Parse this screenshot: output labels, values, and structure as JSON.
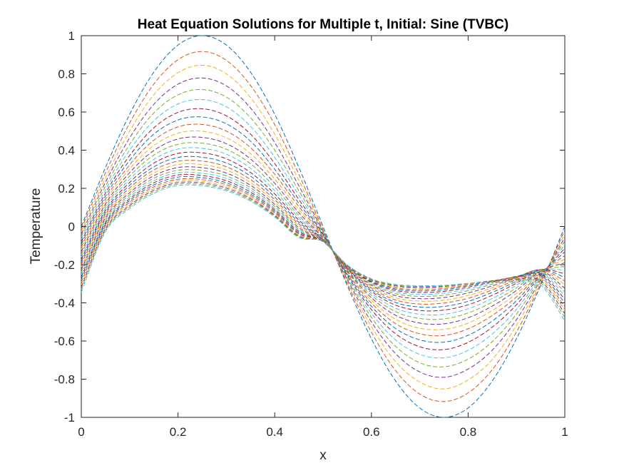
{
  "chart_data": {
    "type": "line",
    "title": "Heat Equation Solutions for Multiple t, Initial: Sine (TVBC)",
    "xlabel": "x",
    "ylabel": "Temperature",
    "xlim": [
      0,
      1
    ],
    "ylim": [
      -1,
      1
    ],
    "xticks": [
      0,
      0.2,
      0.4,
      0.6,
      0.8,
      1
    ],
    "xtick_labels": [
      "0",
      "0.2",
      "0.4",
      "0.6",
      "0.8",
      "1"
    ],
    "yticks": [
      -1,
      -0.8,
      -0.6,
      -0.4,
      -0.2,
      0,
      0.2,
      0.4,
      0.6,
      0.8,
      1
    ],
    "ytick_labels": [
      "-1",
      "-0.8",
      "-0.6",
      "-0.4",
      "-0.2",
      "0",
      "0.2",
      "0.4",
      "0.6",
      "0.8",
      "1"
    ],
    "grid": false,
    "line_style": "dashed",
    "color_order": [
      "#0072BD",
      "#D95319",
      "#EDB120",
      "#7E2F8E",
      "#77AC30",
      "#4DBEEE",
      "#A2142F"
    ],
    "x": [
      0,
      0.05,
      0.1,
      0.15,
      0.2,
      0.25,
      0.3,
      0.35,
      0.4,
      0.45,
      0.5,
      0.55,
      0.6,
      0.65,
      0.7,
      0.75,
      0.8,
      0.85,
      0.9,
      0.95,
      1
    ],
    "series": [
      {
        "values": [
          0,
          0.309,
          0.588,
          0.809,
          0.951,
          1,
          0.951,
          0.809,
          0.588,
          0.309,
          0,
          -0.309,
          -0.588,
          -0.809,
          -0.951,
          -1,
          -0.951,
          -0.809,
          -0.588,
          -0.309,
          0
        ]
      },
      {
        "values": [
          -0.013,
          0.281,
          0.542,
          0.746,
          0.874,
          0.917,
          0.871,
          0.739,
          0.534,
          0.273,
          -0.015,
          -0.298,
          -0.554,
          -0.755,
          -0.878,
          -0.917,
          -0.872,
          -0.75,
          -0.553,
          -0.299,
          -0.019
        ]
      },
      {
        "values": [
          -0.026,
          0.254,
          0.5,
          0.69,
          0.806,
          0.845,
          0.8,
          0.676,
          0.484,
          0.242,
          -0.02,
          -0.287,
          -0.525,
          -0.708,
          -0.815,
          -0.851,
          -0.804,
          -0.697,
          -0.518,
          -0.288,
          -0.038
        ]
      },
      {
        "values": [
          -0.04,
          0.232,
          0.464,
          0.64,
          0.746,
          0.778,
          0.737,
          0.621,
          0.44,
          0.213,
          -0.025,
          -0.278,
          -0.5,
          -0.666,
          -0.762,
          -0.79,
          -0.747,
          -0.648,
          -0.488,
          -0.279,
          -0.057
        ]
      },
      {
        "values": [
          -0.053,
          0.211,
          0.43,
          0.595,
          0.69,
          0.718,
          0.678,
          0.57,
          0.4,
          0.187,
          -0.03,
          -0.27,
          -0.476,
          -0.628,
          -0.714,
          -0.735,
          -0.695,
          -0.603,
          -0.459,
          -0.27,
          -0.076
        ]
      },
      {
        "values": [
          -0.066,
          0.192,
          0.4,
          0.554,
          0.642,
          0.665,
          0.627,
          0.525,
          0.363,
          0.163,
          -0.035,
          -0.262,
          -0.455,
          -0.594,
          -0.67,
          -0.688,
          -0.649,
          -0.563,
          -0.434,
          -0.262,
          -0.095
        ]
      },
      {
        "values": [
          -0.079,
          0.175,
          0.372,
          0.517,
          0.598,
          0.617,
          0.58,
          0.484,
          0.33,
          0.141,
          -0.04,
          -0.255,
          -0.435,
          -0.562,
          -0.63,
          -0.645,
          -0.607,
          -0.527,
          -0.41,
          -0.255,
          -0.114
        ]
      },
      {
        "values": [
          -0.092,
          0.159,
          0.347,
          0.484,
          0.558,
          0.574,
          0.538,
          0.447,
          0.3,
          0.122,
          -0.045,
          -0.249,
          -0.418,
          -0.534,
          -0.594,
          -0.606,
          -0.57,
          -0.495,
          -0.389,
          -0.249,
          -0.133
        ]
      },
      {
        "values": [
          -0.106,
          0.144,
          0.323,
          0.452,
          0.522,
          0.535,
          0.5,
          0.413,
          0.274,
          0.104,
          -0.05,
          -0.243,
          -0.401,
          -0.509,
          -0.562,
          -0.571,
          -0.536,
          -0.466,
          -0.369,
          -0.244,
          -0.152
        ]
      },
      {
        "values": [
          -0.119,
          0.131,
          0.302,
          0.424,
          0.489,
          0.499,
          0.465,
          0.382,
          0.249,
          0.087,
          -0.055,
          -0.238,
          -0.386,
          -0.486,
          -0.533,
          -0.539,
          -0.506,
          -0.44,
          -0.351,
          -0.239,
          -0.171
        ]
      },
      {
        "values": [
          -0.132,
          0.118,
          0.282,
          0.398,
          0.459,
          0.467,
          0.434,
          0.354,
          0.227,
          0.072,
          -0.06,
          -0.233,
          -0.373,
          -0.465,
          -0.506,
          -0.51,
          -0.478,
          -0.417,
          -0.335,
          -0.234,
          -0.19
        ]
      },
      {
        "values": [
          -0.145,
          0.106,
          0.264,
          0.374,
          0.431,
          0.437,
          0.405,
          0.329,
          0.207,
          0.058,
          -0.063,
          -0.229,
          -0.36,
          -0.446,
          -0.482,
          -0.484,
          -0.453,
          -0.396,
          -0.321,
          -0.231,
          -0.21
        ]
      },
      {
        "values": [
          -0.159,
          0.095,
          0.247,
          0.352,
          0.406,
          0.41,
          0.379,
          0.305,
          0.188,
          0.045,
          -0.066,
          -0.225,
          -0.349,
          -0.428,
          -0.46,
          -0.46,
          -0.431,
          -0.377,
          -0.308,
          -0.228,
          -0.229
        ]
      },
      {
        "values": [
          -0.172,
          0.084,
          0.231,
          0.332,
          0.383,
          0.386,
          0.355,
          0.283,
          0.171,
          0.033,
          -0.069,
          -0.221,
          -0.339,
          -0.412,
          -0.44,
          -0.438,
          -0.41,
          -0.36,
          -0.297,
          -0.226,
          -0.248
        ]
      },
      {
        "values": [
          -0.185,
          0.074,
          0.216,
          0.313,
          0.362,
          0.363,
          0.333,
          0.264,
          0.155,
          0.022,
          -0.071,
          -0.218,
          -0.33,
          -0.398,
          -0.422,
          -0.419,
          -0.392,
          -0.345,
          -0.287,
          -0.225,
          -0.267
        ]
      },
      {
        "values": [
          -0.198,
          0.064,
          0.202,
          0.296,
          0.342,
          0.343,
          0.313,
          0.246,
          0.141,
          0.012,
          -0.073,
          -0.215,
          -0.322,
          -0.385,
          -0.406,
          -0.401,
          -0.376,
          -0.332,
          -0.278,
          -0.225,
          -0.286
        ]
      },
      {
        "values": [
          -0.211,
          0.055,
          0.189,
          0.28,
          0.325,
          0.324,
          0.296,
          0.23,
          0.128,
          0.003,
          -0.075,
          -0.213,
          -0.315,
          -0.373,
          -0.391,
          -0.386,
          -0.361,
          -0.321,
          -0.272,
          -0.227,
          -0.305
        ]
      },
      {
        "values": [
          -0.225,
          0.046,
          0.177,
          0.266,
          0.309,
          0.308,
          0.28,
          0.216,
          0.116,
          -0.006,
          -0.076,
          -0.211,
          -0.308,
          -0.362,
          -0.378,
          -0.372,
          -0.348,
          -0.311,
          -0.267,
          -0.23,
          -0.324
        ]
      },
      {
        "values": [
          -0.238,
          0.037,
          0.166,
          0.253,
          0.295,
          0.293,
          0.265,
          0.203,
          0.105,
          -0.014,
          -0.077,
          -0.209,
          -0.302,
          -0.352,
          -0.366,
          -0.36,
          -0.336,
          -0.302,
          -0.264,
          -0.234,
          -0.343
        ]
      },
      {
        "values": [
          -0.251,
          0.028,
          0.155,
          0.24,
          0.282,
          0.279,
          0.252,
          0.191,
          0.095,
          -0.021,
          -0.078,
          -0.207,
          -0.297,
          -0.343,
          -0.356,
          -0.349,
          -0.326,
          -0.295,
          -0.262,
          -0.24,
          -0.362
        ]
      },
      {
        "values": [
          -0.264,
          0.02,
          0.145,
          0.229,
          0.27,
          0.267,
          0.24,
          0.18,
          0.087,
          -0.027,
          -0.078,
          -0.206,
          -0.292,
          -0.335,
          -0.346,
          -0.34,
          -0.318,
          -0.29,
          -0.262,
          -0.247,
          -0.381
        ]
      },
      {
        "values": [
          -0.277,
          0.012,
          0.136,
          0.218,
          0.259,
          0.256,
          0.229,
          0.17,
          0.079,
          -0.034,
          -0.079,
          -0.205,
          -0.288,
          -0.328,
          -0.338,
          -0.332,
          -0.311,
          -0.286,
          -0.264,
          -0.255,
          -0.4
        ]
      },
      {
        "values": [
          -0.291,
          0.004,
          0.127,
          0.208,
          0.248,
          0.246,
          0.219,
          0.161,
          0.072,
          -0.039,
          -0.079,
          -0.204,
          -0.284,
          -0.322,
          -0.331,
          -0.325,
          -0.306,
          -0.284,
          -0.267,
          -0.264,
          -0.419
        ]
      },
      {
        "values": [
          -0.304,
          -0.004,
          0.118,
          0.199,
          0.239,
          0.236,
          0.209,
          0.153,
          0.065,
          -0.045,
          -0.079,
          -0.203,
          -0.281,
          -0.316,
          -0.324,
          -0.319,
          -0.302,
          -0.284,
          -0.271,
          -0.274,
          -0.438
        ]
      },
      {
        "values": [
          -0.317,
          -0.012,
          0.11,
          0.19,
          0.23,
          0.228,
          0.201,
          0.146,
          0.059,
          -0.05,
          -0.079,
          -0.202,
          -0.278,
          -0.311,
          -0.319,
          -0.314,
          -0.299,
          -0.285,
          -0.276,
          -0.284,
          -0.457
        ]
      },
      {
        "values": [
          -0.33,
          -0.02,
          0.102,
          0.182,
          0.222,
          0.22,
          0.193,
          0.139,
          0.054,
          -0.054,
          -0.079,
          -0.202,
          -0.276,
          -0.307,
          -0.314,
          -0.311,
          -0.298,
          -0.288,
          -0.283,
          -0.295,
          -0.476
        ]
      },
      {
        "values": [
          -0.344,
          -0.027,
          0.094,
          0.174,
          0.215,
          0.213,
          0.187,
          0.133,
          0.049,
          -0.058,
          -0.079,
          -0.201,
          -0.274,
          -0.303,
          -0.31,
          -0.308,
          -0.298,
          -0.292,
          -0.291,
          -0.306,
          -0.495
        ]
      }
    ]
  }
}
